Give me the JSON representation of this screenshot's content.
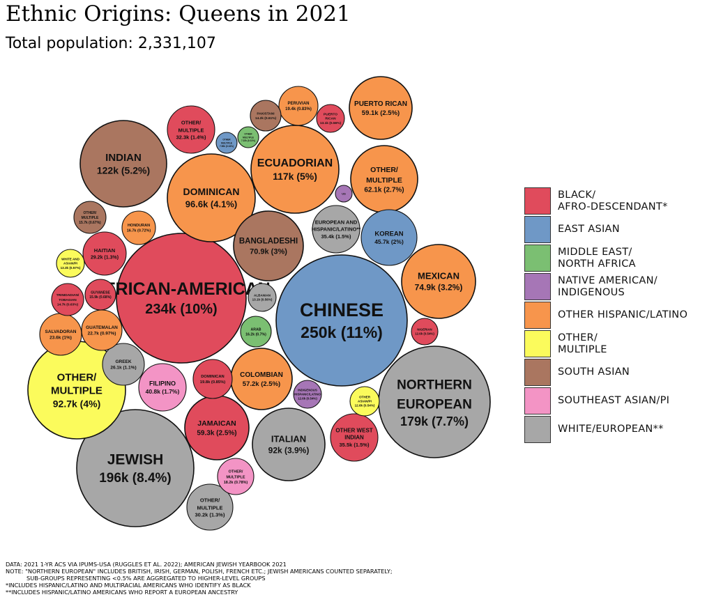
{
  "title": "Ethnic Origins: Queens in 2021",
  "subtitle": "Total population: 2,331,107",
  "notes": {
    "data": "DATA: 2021 1-YR ACS VIA IPUMS-USA (RUGGLES ET AL. 2022); AMERICAN JEWISH YEARBOOK 2021",
    "note1": "NOTE: \"NORTHERN EUROPEAN\" INCLUDES BRITISH, IRISH, GERMAN, POLISH, FRENCH ETC.; JEWISH AMERICANS COUNTED SEPARATELY;",
    "note2": "SUB-GROUPS REPRESENTING <0.5% ARE AGGREGATED TO HIGHER-LEVEL GROUPS",
    "star1": "*INCLUDES HISPANIC/LATINO AND MULTIRACIAL AMERICANS WHO IDENTIFY AS BLACK",
    "star2": "**INCLUDES HISPANIC/LATINO AMERICANS WHO REPORT A EUROPEAN ANCESTRY"
  },
  "legend": [
    {
      "label": "BLACK/\nAFRO-DESCENDANT*",
      "color": "#e04b5c"
    },
    {
      "label": "EAST ASIAN",
      "color": "#6f98c6"
    },
    {
      "label": "MIDDLE EAST/\nNORTH AFRICA",
      "color": "#7bbf72"
    },
    {
      "label": "NATIVE AMERICAN/\nINDIGENOUS",
      "color": "#a676b6"
    },
    {
      "label": "OTHER HISPANIC/LATINO",
      "color": "#f7954c"
    },
    {
      "label": "OTHER/\nMULTIPLE",
      "color": "#fbfb5c"
    },
    {
      "label": "SOUTH ASIAN",
      "color": "#aa7660"
    },
    {
      "label": "SOUTHEAST ASIAN/PI",
      "color": "#f394c5"
    },
    {
      "label": "WHITE/EUROPEAN**",
      "color": "#a7a7a7"
    }
  ],
  "chart_data": {
    "type": "bubble",
    "total_population": 2331107,
    "bubbles": [
      {
        "name": "CHINESE",
        "value_label": "250k (11%)",
        "value": 250000,
        "share": 11,
        "group": "EAST ASIAN"
      },
      {
        "name": "AFRICAN-AMERICAN",
        "value_label": "234k (10%)",
        "value": 234000,
        "share": 10,
        "group": "BLACK/AFRO-DESCENDANT*"
      },
      {
        "name": "JEWISH",
        "value_label": "196k (8.4%)",
        "value": 196000,
        "share": 8.4,
        "group": "WHITE/EUROPEAN**"
      },
      {
        "name": "NORTHERN EUROPEAN",
        "value_label": "179k (7.7%)",
        "value": 179000,
        "share": 7.7,
        "group": "WHITE/EUROPEAN**"
      },
      {
        "name": "INDIAN",
        "value_label": "122k (5.2%)",
        "value": 122000,
        "share": 5.2,
        "group": "SOUTH ASIAN"
      },
      {
        "name": "ECUADORIAN",
        "value_label": "117k (5%)",
        "value": 117000,
        "share": 5,
        "group": "OTHER HISPANIC/LATINO"
      },
      {
        "name": "DOMINICAN",
        "value_label": "96.6k (4.1%)",
        "value": 96600,
        "share": 4.1,
        "group": "OTHER HISPANIC/LATINO"
      },
      {
        "name": "OTHER/ MULTIPLE",
        "value_label": "92.7k (4%)",
        "value": 92700,
        "share": 4,
        "group": "OTHER/MULTIPLE"
      },
      {
        "name": "ITALIAN",
        "value_label": "92k (3.9%)",
        "value": 92000,
        "share": 3.9,
        "group": "WHITE/EUROPEAN**"
      },
      {
        "name": "MEXICAN",
        "value_label": "74.9k (3.2%)",
        "value": 74900,
        "share": 3.2,
        "group": "OTHER HISPANIC/LATINO"
      },
      {
        "name": "BANGLADESHI",
        "value_label": "70.9k (3%)",
        "value": 70900,
        "share": 3,
        "group": "SOUTH ASIAN"
      },
      {
        "name": "OTHER/ MULTIPLE",
        "value_label": "62.1k (2.7%)",
        "value": 62100,
        "share": 2.7,
        "group": "OTHER HISPANIC/LATINO"
      },
      {
        "name": "JAMAICAN",
        "value_label": "59.3k (2.5%)",
        "value": 59300,
        "share": 2.5,
        "group": "BLACK/AFRO-DESCENDANT*"
      },
      {
        "name": "PUERTO RICAN",
        "value_label": "59.1k (2.5%)",
        "value": 59100,
        "share": 2.5,
        "group": "OTHER HISPANIC/LATINO"
      },
      {
        "name": "COLOMBIAN",
        "value_label": "57.2k (2.5%)",
        "value": 57200,
        "share": 2.5,
        "group": "OTHER HISPANIC/LATINO"
      },
      {
        "name": "KOREAN",
        "value_label": "45.7k (2%)",
        "value": 45700,
        "share": 2,
        "group": "EAST ASIAN"
      },
      {
        "name": "FILIPINO",
        "value_label": "40.8k (1.7%)",
        "value": 40800,
        "share": 1.7,
        "group": "SOUTHEAST ASIAN/PI"
      },
      {
        "name": "EUROPEAN AND HISPANIC/LATINO**",
        "value_label": "35.4k (1.5%)",
        "value": 35400,
        "share": 1.5,
        "group": "WHITE/EUROPEAN**"
      },
      {
        "name": "OTHER WEST INDIAN",
        "value_label": "35.5k (1.5%)",
        "value": 35500,
        "share": 1.5,
        "group": "BLACK/AFRO-DESCENDANT*"
      },
      {
        "name": "OTHER/ MULTIPLE",
        "value_label": "32.3k (1.4%)",
        "value": 32300,
        "share": 1.4,
        "group": "BLACK/AFRO-DESCENDANT*"
      },
      {
        "name": "OTHER/ MULTIPLE",
        "value_label": "30.2k (1.3%)",
        "value": 30200,
        "share": 1.3,
        "group": "WHITE/EUROPEAN**"
      },
      {
        "name": "HAITIAN",
        "value_label": "29.2k (1.3%)",
        "value": 29200,
        "share": 1.3,
        "group": "BLACK/AFRO-DESCENDANT*"
      },
      {
        "name": "GREEK",
        "value_label": "26.1k (1.1%)",
        "value": 26100,
        "share": 1.1,
        "group": "WHITE/EUROPEAN**"
      },
      {
        "name": "SALVADORAN",
        "value_label": "23.6k (1%)",
        "value": 23600,
        "share": 1,
        "group": "OTHER HISPANIC/LATINO"
      },
      {
        "name": "GUATEMALAN",
        "value_label": "22.7k (0.97%)",
        "value": 22700,
        "share": 0.97,
        "group": "OTHER HISPANIC/LATINO"
      },
      {
        "name": "DOMINICAN",
        "value_label": "19.8k (0.85%)",
        "value": 19800,
        "share": 0.85,
        "group": "BLACK/AFRO-DESCENDANT*"
      },
      {
        "name": "PERUVIAN",
        "value_label": "19.4k (0.83%)",
        "value": 19400,
        "share": 0.83,
        "group": "OTHER HISPANIC/LATINO"
      },
      {
        "name": "OTHER/ MULTIPLE",
        "value_label": "18.2k (0.78%)",
        "value": 18200,
        "share": 0.78,
        "group": "SOUTHEAST ASIAN/PI"
      },
      {
        "name": "HONDURAN",
        "value_label": "16.7k (0.72%)",
        "value": 16700,
        "share": 0.72,
        "group": "OTHER HISPANIC/LATINO"
      },
      {
        "name": "ARAB",
        "value_label": "16.2k (0.7%)",
        "value": 16200,
        "share": 0.7,
        "group": "MIDDLE EAST/NORTH AFRICA"
      },
      {
        "name": "GUYANESE",
        "value_label": "15.9k (0.68%)",
        "value": 15900,
        "share": 0.68,
        "group": "BLACK/AFRO-DESCENDANT*"
      },
      {
        "name": "OTHER/ MULTIPLE",
        "value_label": "15.7k (0.67%)",
        "value": 15700,
        "share": 0.67,
        "group": "SOUTH ASIAN"
      },
      {
        "name": "TRINIDADIAN/ TOBAGIAN",
        "value_label": "14.7k (0.63%)",
        "value": 14700,
        "share": 0.63,
        "group": "BLACK/AFRO-DESCENDANT*"
      },
      {
        "name": "PAKISTANI",
        "value_label": "14.2k (0.61%)",
        "value": 14200,
        "share": 0.61,
        "group": "SOUTH ASIAN"
      },
      {
        "name": "WHITE AND ASIAN/PI",
        "value_label": "13.3k (0.57%)",
        "value": 13300,
        "share": 0.57,
        "group": "OTHER/MULTIPLE"
      },
      {
        "name": "ALBANIAN",
        "value_label": "13.1k (0.56%)",
        "value": 13100,
        "share": 0.56,
        "group": "WHITE/EUROPEAN**"
      },
      {
        "name": "PUERTO RICAN",
        "value_label": "13.1k (0.56%)",
        "value": 13100,
        "share": 0.56,
        "group": "BLACK/AFRO-DESCENDANT*"
      },
      {
        "name": "NIGERIAN",
        "value_label": "12.6k (0.54%)",
        "value": 12600,
        "share": 0.54,
        "group": "BLACK/AFRO-DESCENDANT*"
      },
      {
        "name": "INDIGENOUS HISPANIC/LATINO",
        "value_label": "12.6k (0.54%)",
        "value": 12600,
        "share": 0.54,
        "group": "NATIVE AMERICAN/INDIGENOUS"
      },
      {
        "name": "OTHER ASIAN/PI",
        "value_label": "12.6k (0.54%)",
        "value": 12600,
        "share": 0.54,
        "group": "OTHER/MULTIPLE"
      },
      {
        "name": "OTHER MULTIPLE",
        "value_label": "7.96k (0.34%)",
        "value": 7960,
        "share": 0.34,
        "group": "EAST ASIAN"
      },
      {
        "name": "OTHER MULTIPLE",
        "value_label": "7.22k (0.31%)",
        "value": 7220,
        "share": 0.31,
        "group": "MIDDLE EAST/NORTH AFRICA"
      },
      {
        "name": "",
        "value_label": "US",
        "value": 5000,
        "share": 0.2,
        "group": "NATIVE AMERICAN/INDIGENOUS"
      }
    ]
  }
}
